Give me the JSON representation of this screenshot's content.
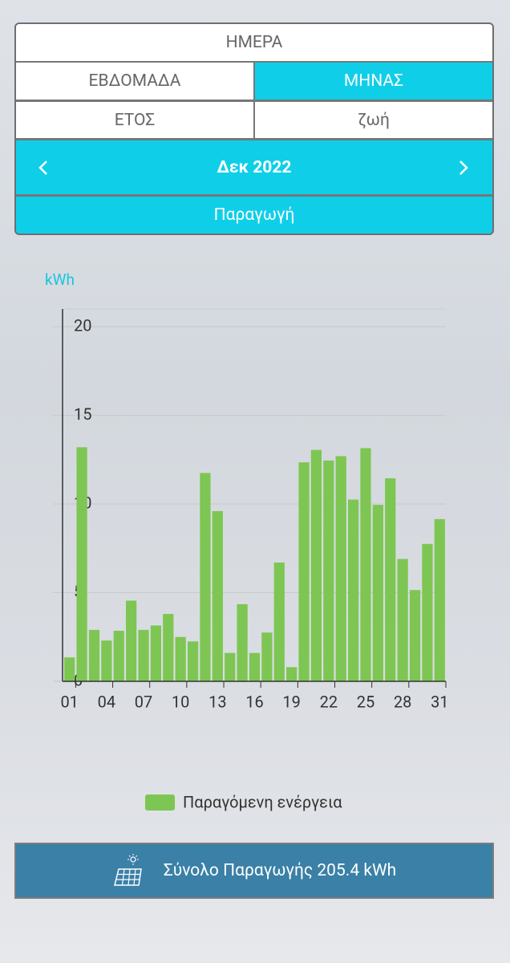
{
  "tabs": {
    "day": "ΗΜΕΡΑ",
    "week": "ΕΒΔΟΜΑΔΑ",
    "month": "ΜΗΝΑΣ",
    "year": "ΕΤΟΣ",
    "life": "ζωή"
  },
  "period": "Δεκ 2022",
  "view": "Παραγωγή",
  "total": "Σύνολο Παραγωγής 205.4 kWh",
  "chart_data": {
    "type": "bar",
    "y_label": "kWh",
    "categories": [
      "01",
      null,
      null,
      "04",
      null,
      null,
      "07",
      null,
      null,
      "10",
      null,
      null,
      "13",
      null,
      null,
      "16",
      null,
      null,
      "19",
      null,
      null,
      "22",
      null,
      null,
      "25",
      null,
      null,
      "28",
      null,
      null,
      "31"
    ],
    "series": [
      {
        "name": "Παραγόμενη ενέργεια",
        "color": "#7ec653",
        "values": [
          1.35,
          13.2,
          2.9,
          2.3,
          2.85,
          4.55,
          2.9,
          3.15,
          3.8,
          2.5,
          2.25,
          11.75,
          9.6,
          1.6,
          4.35,
          1.6,
          2.75,
          6.7,
          0.8,
          12.35,
          13.05,
          12.45,
          12.7,
          10.25,
          13.15,
          9.95,
          11.45,
          6.9,
          5.15,
          7.75,
          9.15
        ]
      }
    ],
    "ylim": [
      0,
      21
    ],
    "yticks": [
      0,
      5,
      10,
      15,
      20
    ],
    "grid": true
  }
}
